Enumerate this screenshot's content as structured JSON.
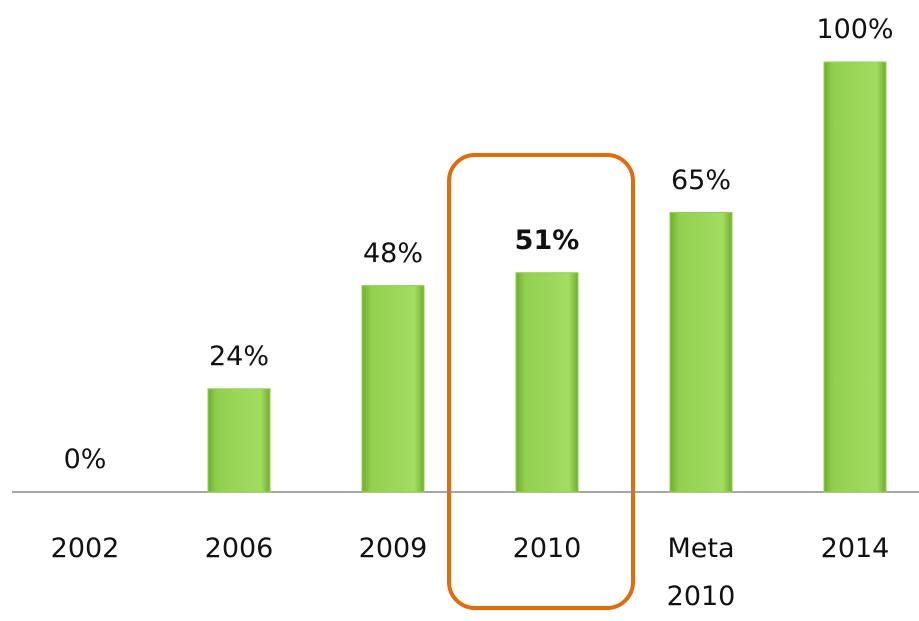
{
  "chart_data": {
    "type": "bar",
    "categories": [
      "2002",
      "2006",
      "2009",
      "2010",
      "Meta\n2010",
      "2014"
    ],
    "values": [
      0,
      24,
      48,
      51,
      65,
      100
    ],
    "value_labels": [
      "0%",
      "24%",
      "48%",
      "51%",
      "65%",
      "100%"
    ],
    "color": "#92d050",
    "ylim": [
      0,
      100
    ],
    "highlight_index": 3,
    "highlight_color": "#e36c09"
  }
}
